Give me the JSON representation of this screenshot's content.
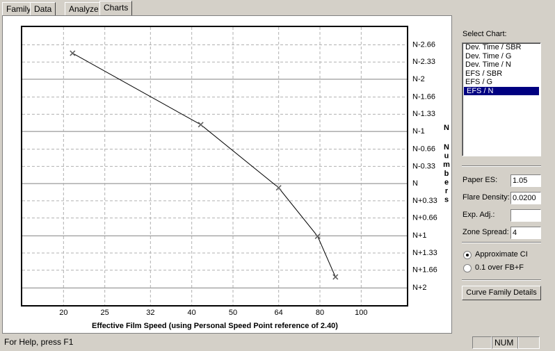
{
  "tabs": [
    "Family",
    "Data",
    "Analyze",
    "Charts"
  ],
  "chart_data": {
    "type": "line",
    "x_label": "Effective Film Speed (using Personal Speed Point reference of 2.40)",
    "y_label": "N Numbers",
    "x_scale": "log",
    "xlim": [
      16,
      128
    ],
    "xticks": [
      20,
      25,
      32,
      40,
      50,
      64,
      80,
      100
    ],
    "ylim": [
      2.33,
      -3
    ],
    "yticks": [
      {
        "value": -2.66,
        "label": "N-2.66"
      },
      {
        "value": -2.33,
        "label": "N-2.33"
      },
      {
        "value": -2,
        "label": "N-2"
      },
      {
        "value": -1.66,
        "label": "N-1.66"
      },
      {
        "value": -1.33,
        "label": "N-1.33"
      },
      {
        "value": -1,
        "label": "N-1"
      },
      {
        "value": -0.66,
        "label": "N-0.66"
      },
      {
        "value": -0.33,
        "label": "N-0.33"
      },
      {
        "value": 0,
        "label": "N"
      },
      {
        "value": 0.33,
        "label": "N+0.33"
      },
      {
        "value": 0.66,
        "label": "N+0.66"
      },
      {
        "value": 1,
        "label": "N+1"
      },
      {
        "value": 1.33,
        "label": "N+1.33"
      },
      {
        "value": 1.66,
        "label": "N+1.66"
      },
      {
        "value": 2,
        "label": "N+2"
      }
    ],
    "grid": true,
    "x": [
      21,
      42,
      64,
      79,
      87
    ],
    "series": [
      {
        "color": "#000000",
        "values": [
          -2.5,
          -1.13,
          0.08,
          1.01,
          1.79
        ]
      }
    ]
  },
  "panel": {
    "select_label": "Select Chart:",
    "charts": [
      "Dev. Time / SBR",
      "Dev. Time / G",
      "Dev. Time / N",
      "EFS / SBR",
      "EFS / G",
      "EFS / N"
    ],
    "selected": 5,
    "fields": [
      {
        "label": "Paper ES:",
        "value": "1.05"
      },
      {
        "label": "Flare Density:",
        "value": "0.0200"
      },
      {
        "label": "Exp. Adj.:"
      },
      {
        "label": "Zone Spread:",
        "value": "4"
      }
    ],
    "radios": [
      "Approximate CI",
      "0.1 over FB+F"
    ],
    "radio_checked": 0,
    "button": "Curve Family Details"
  },
  "status": {
    "help": "For Help, press F1",
    "indicator": "NUM"
  }
}
